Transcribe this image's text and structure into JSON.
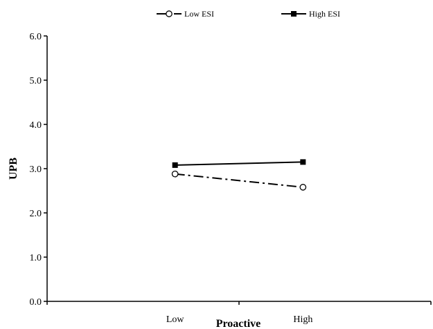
{
  "chart_data": {
    "type": "line",
    "categories": [
      "Low",
      "High"
    ],
    "series": [
      {
        "name": "Low ESI",
        "values": [
          2.88,
          2.58
        ],
        "marker": "open-circle",
        "line_style": "dash-dot",
        "color": "#000000"
      },
      {
        "name": "High ESI",
        "values": [
          3.08,
          3.15
        ],
        "marker": "filled-square",
        "line_style": "solid",
        "color": "#000000"
      }
    ],
    "xlabel": "Proactive",
    "ylabel": "UPB",
    "ylim": [
      0,
      6
    ],
    "yticks": [
      "0.0",
      "1.0",
      "2.0",
      "3.0",
      "4.0",
      "5.0",
      "6.0"
    ],
    "grid": false,
    "legend": "top-center"
  }
}
